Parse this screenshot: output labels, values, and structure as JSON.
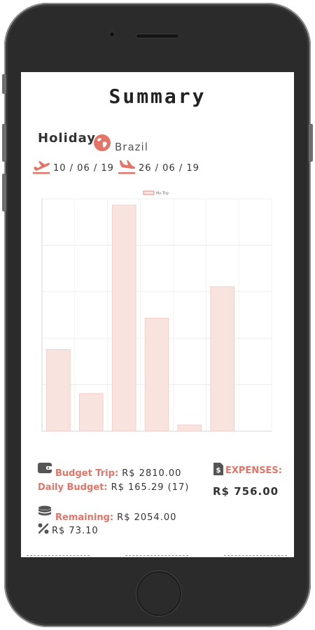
{
  "screen": {
    "title": "Summary",
    "trip": {
      "name": "Holiday",
      "destination": "Brazil"
    },
    "departure_date": "10 / 06 / 19",
    "return_date": "26 / 06 / 19",
    "budget": {
      "budget_trip_label": "Budget Trip:",
      "budget_trip_value": "R$ 2810.00",
      "daily_budget_label": "Daily Budget:",
      "daily_budget_value": "R$ 165.29 (17)",
      "expenses_label": "EXPENSES:",
      "expenses_value": "R$ 756.00",
      "remaining_label": "Remaining:",
      "remaining_value": "R$ 2054.00",
      "percent_value": "R$ 73.10"
    },
    "colors": {
      "accent": "#e27567",
      "bar_fill": "#f9e3df",
      "bar_stroke": "#f3c9c2",
      "text": "#333333"
    }
  },
  "chart_data": {
    "type": "bar",
    "legend": {
      "label": "My Trip",
      "position": "top"
    },
    "categories": [
      "",
      "",
      "",
      "",
      "",
      "",
      ""
    ],
    "values": [
      130,
      60,
      360,
      180,
      10,
      230,
      0
    ],
    "ylim": [
      0,
      370
    ],
    "yticks": [
      "",
      "",
      "",
      "",
      "",
      ""
    ],
    "grid": true
  }
}
